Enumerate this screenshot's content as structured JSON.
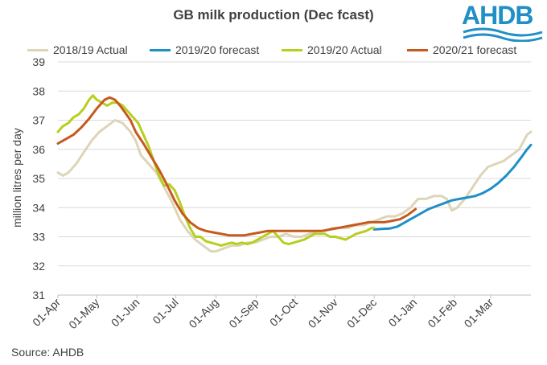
{
  "chart_data": {
    "type": "line",
    "title": "GB milk production (Dec fcast)",
    "xlabel": "",
    "ylabel": "million litres per day",
    "ylim": [
      31,
      39
    ],
    "yticks": [
      "31",
      "32",
      "33",
      "34",
      "35",
      "36",
      "37",
      "38",
      "39"
    ],
    "x_unit": "days since 01-Apr",
    "xlim": [
      0,
      365
    ],
    "xticks": [
      {
        "label": "01-Apr",
        "day": 0
      },
      {
        "label": "01-May",
        "day": 30
      },
      {
        "label": "01-Jun",
        "day": 61
      },
      {
        "label": "01-Jul",
        "day": 91
      },
      {
        "label": "01-Aug",
        "day": 122
      },
      {
        "label": "01-Sep",
        "day": 153
      },
      {
        "label": "01-Oct",
        "day": 183
      },
      {
        "label": "01-Nov",
        "day": 214
      },
      {
        "label": "01-Dec",
        "day": 244
      },
      {
        "label": "01-Jan",
        "day": 275
      },
      {
        "label": "01-Feb",
        "day": 306
      },
      {
        "label": "01-Mar",
        "day": 334
      }
    ],
    "grid": true,
    "series": [
      {
        "name": "2018/19 Actual",
        "color": "#ddd5b8",
        "x": [
          0,
          4,
          8,
          14,
          20,
          26,
          32,
          38,
          44,
          50,
          56,
          60,
          64,
          70,
          76,
          82,
          88,
          94,
          100,
          106,
          112,
          118,
          122,
          128,
          134,
          140,
          146,
          152,
          158,
          164,
          170,
          176,
          182,
          188,
          194,
          200,
          206,
          212,
          218,
          224,
          230,
          236,
          242,
          248,
          254,
          260,
          266,
          272,
          278,
          284,
          290,
          296,
          300,
          304,
          308,
          314,
          320,
          326,
          332,
          338,
          344,
          350,
          356,
          362,
          365
        ],
        "values": [
          35.2,
          35.1,
          35.2,
          35.5,
          35.9,
          36.3,
          36.6,
          36.8,
          37.0,
          36.9,
          36.6,
          36.3,
          35.8,
          35.5,
          35.2,
          34.7,
          34.2,
          33.6,
          33.2,
          32.9,
          32.7,
          32.5,
          32.5,
          32.6,
          32.7,
          32.7,
          32.8,
          32.8,
          32.9,
          33.0,
          33.0,
          33.1,
          33.0,
          33.0,
          33.1,
          33.2,
          33.2,
          33.3,
          33.3,
          33.3,
          33.4,
          33.4,
          33.5,
          33.6,
          33.7,
          33.7,
          33.8,
          34.0,
          34.3,
          34.3,
          34.4,
          34.4,
          34.3,
          33.9,
          34.0,
          34.3,
          34.7,
          35.1,
          35.4,
          35.5,
          35.6,
          35.8,
          36.0,
          36.5,
          36.6
        ]
      },
      {
        "name": "2019/20 forecast",
        "color": "#1f8fc6",
        "x": [
          244,
          250,
          256,
          262,
          268,
          274,
          280,
          286,
          292,
          298,
          304,
          310,
          316,
          322,
          328,
          334,
          340,
          346,
          352,
          358,
          362,
          365
        ],
        "values": [
          33.25,
          33.27,
          33.28,
          33.35,
          33.5,
          33.65,
          33.8,
          33.95,
          34.05,
          34.15,
          34.25,
          34.3,
          34.35,
          34.4,
          34.5,
          34.65,
          34.85,
          35.1,
          35.4,
          35.75,
          36.0,
          36.15
        ]
      },
      {
        "name": "2019/20 Actual",
        "color": "#b6cf1e",
        "x": [
          0,
          4,
          8,
          12,
          16,
          20,
          24,
          27,
          30,
          34,
          38,
          42,
          46,
          50,
          54,
          58,
          62,
          66,
          70,
          74,
          78,
          82,
          86,
          90,
          94,
          98,
          102,
          106,
          110,
          114,
          118,
          122,
          126,
          130,
          134,
          138,
          142,
          146,
          150,
          154,
          158,
          162,
          166,
          170,
          174,
          178,
          182,
          186,
          190,
          194,
          198,
          202,
          206,
          210,
          214,
          218,
          222,
          226,
          230,
          234,
          238,
          242,
          244
        ],
        "values": [
          36.6,
          36.8,
          36.9,
          37.1,
          37.2,
          37.4,
          37.7,
          37.85,
          37.7,
          37.6,
          37.5,
          37.6,
          37.6,
          37.5,
          37.3,
          37.1,
          36.9,
          36.5,
          36.1,
          35.6,
          35.1,
          34.75,
          34.8,
          34.6,
          34.2,
          33.7,
          33.3,
          33.0,
          33.0,
          32.85,
          32.8,
          32.75,
          32.7,
          32.75,
          32.8,
          32.75,
          32.8,
          32.75,
          32.8,
          32.9,
          33.0,
          33.1,
          33.2,
          33.0,
          32.8,
          32.75,
          32.8,
          32.85,
          32.9,
          33.0,
          33.1,
          33.1,
          33.1,
          33.0,
          33.0,
          32.95,
          32.9,
          33.0,
          33.1,
          33.15,
          33.2,
          33.3,
          33.3
        ]
      },
      {
        "name": "2020/21 forecast",
        "color": "#c65a1e",
        "x": [
          0,
          6,
          12,
          18,
          24,
          30,
          36,
          40,
          44,
          48,
          52,
          56,
          60,
          66,
          72,
          78,
          84,
          90,
          96,
          102,
          108,
          114,
          120,
          126,
          132,
          138,
          144,
          150,
          156,
          162,
          168,
          174,
          180,
          186,
          192,
          198,
          204,
          210,
          216,
          222,
          228,
          234,
          240,
          246,
          252,
          258,
          264,
          270,
          276
        ],
        "values": [
          36.2,
          36.35,
          36.5,
          36.75,
          37.05,
          37.4,
          37.7,
          37.78,
          37.7,
          37.5,
          37.25,
          37.0,
          36.6,
          36.2,
          35.75,
          35.3,
          34.8,
          34.25,
          33.8,
          33.5,
          33.3,
          33.2,
          33.15,
          33.1,
          33.05,
          33.05,
          33.05,
          33.1,
          33.15,
          33.2,
          33.2,
          33.2,
          33.2,
          33.2,
          33.2,
          33.2,
          33.2,
          33.25,
          33.3,
          33.35,
          33.4,
          33.45,
          33.5,
          33.5,
          33.5,
          33.55,
          33.6,
          33.75,
          33.95
        ]
      }
    ],
    "source": "Source: AHDB"
  },
  "logo": {
    "text": "AHDB",
    "color": "#1f8fc6"
  }
}
